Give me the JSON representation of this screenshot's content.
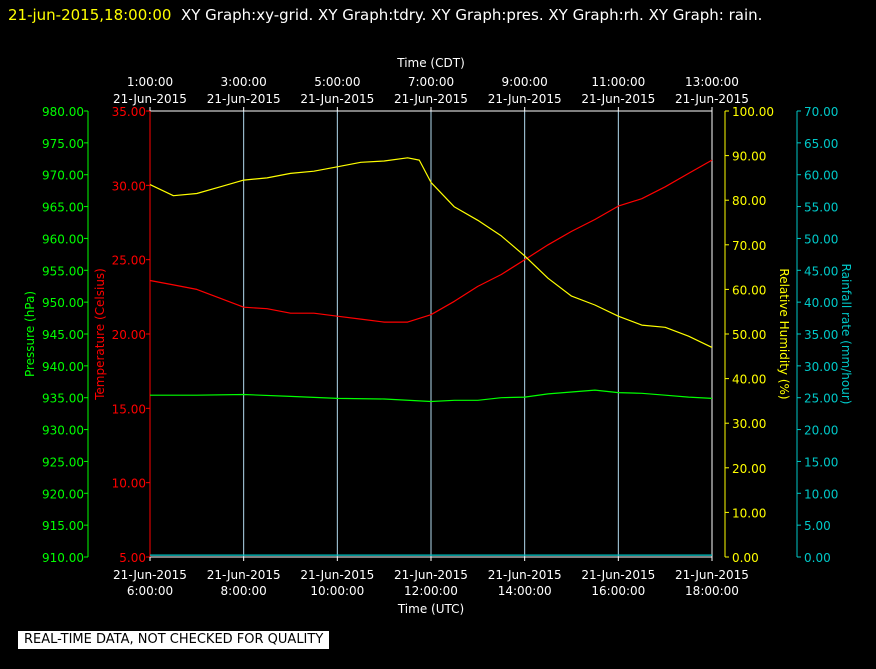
{
  "header": {
    "date_label": "21-jun-2015,18:00:00",
    "graphs_label": "XY Graph:xy-grid.  XY Graph:tdry.  XY Graph:pres.  XY Graph:rh.  XY Graph: rain."
  },
  "footer": {
    "qc_notice": "REAL-TIME DATA, NOT CHECKED FOR QUALITY"
  },
  "colors": {
    "pressure": "#00ff00",
    "temperature": "#ff0000",
    "humidity": "#ffff00",
    "rainfall": "#00c8c8",
    "grid": "#b4dcf0",
    "frame": "#ffffff"
  },
  "chart_data": {
    "type": "line",
    "x_top_title": "Time (CDT)",
    "x_bottom_title": "Time (UTC)",
    "x_range_utc_hours": [
      6,
      18
    ],
    "x_bottom_ticks": [
      {
        "h": 6,
        "date": "21-Jun-2015",
        "time": "6:00:00"
      },
      {
        "h": 8,
        "date": "21-Jun-2015",
        "time": "8:00:00"
      },
      {
        "h": 10,
        "date": "21-Jun-2015",
        "time": "10:00:00"
      },
      {
        "h": 12,
        "date": "21-Jun-2015",
        "time": "12:00:00"
      },
      {
        "h": 14,
        "date": "21-Jun-2015",
        "time": "14:00:00"
      },
      {
        "h": 16,
        "date": "21-Jun-2015",
        "time": "16:00:00"
      },
      {
        "h": 18,
        "date": "21-Jun-2015",
        "time": "18:00:00"
      }
    ],
    "x_top_ticks": [
      {
        "h": 6,
        "time": "1:00:00",
        "date": "21-Jun-2015"
      },
      {
        "h": 8,
        "time": "3:00:00",
        "date": "21-Jun-2015"
      },
      {
        "h": 10,
        "time": "5:00:00",
        "date": "21-Jun-2015"
      },
      {
        "h": 12,
        "time": "7:00:00",
        "date": "21-Jun-2015"
      },
      {
        "h": 14,
        "time": "9:00:00",
        "date": "21-Jun-2015"
      },
      {
        "h": 16,
        "time": "11:00:00",
        "date": "21-Jun-2015"
      },
      {
        "h": 18,
        "time": "13:00:00",
        "date": "21-Jun-2015"
      }
    ],
    "pressure_axis": {
      "label": "Pressure (hPa)",
      "range": [
        910,
        980
      ],
      "ticks": [
        "980.00",
        "975.00",
        "970.00",
        "965.00",
        "960.00",
        "955.00",
        "950.00",
        "945.00",
        "940.00",
        "935.00",
        "930.00",
        "925.00",
        "920.00",
        "915.00",
        "910.00"
      ]
    },
    "temperature_axis": {
      "label": "Temperature (Celsius)",
      "range": [
        5,
        35
      ],
      "ticks": [
        "35.00",
        "30.00",
        "25.00",
        "20.00",
        "15.00",
        "10.00",
        "5.00"
      ]
    },
    "humidity_axis": {
      "label": "Relative Humidity (%)",
      "range": [
        0,
        100
      ],
      "ticks": [
        "100.00",
        "90.00",
        "80.00",
        "70.00",
        "60.00",
        "50.00",
        "40.00",
        "30.00",
        "20.00",
        "10.00",
        "0.00"
      ]
    },
    "rainfall_axis": {
      "label": "Rainfall rate (mm/hour)",
      "range": [
        0,
        70
      ],
      "ticks": [
        "70.00",
        "65.00",
        "60.00",
        "55.00",
        "50.00",
        "45.00",
        "40.00",
        "35.00",
        "30.00",
        "25.00",
        "20.00",
        "15.00",
        "10.00",
        "5.00",
        "0.00"
      ]
    },
    "series": [
      {
        "key": "temperature",
        "axis": "temperature",
        "x": [
          6,
          6.5,
          7,
          7.5,
          8,
          8.5,
          9,
          9.5,
          10,
          10.5,
          11,
          11.5,
          12,
          12.5,
          13,
          13.5,
          14,
          14.5,
          15,
          15.5,
          16,
          16.5,
          17,
          17.5,
          18
        ],
        "values": [
          23.6,
          23.3,
          23.0,
          22.4,
          21.8,
          21.7,
          21.4,
          21.4,
          21.2,
          21.0,
          20.8,
          20.8,
          21.3,
          22.2,
          23.2,
          24.0,
          25.0,
          26.0,
          26.9,
          27.7,
          28.6,
          29.1,
          29.9,
          30.8,
          31.7
        ]
      },
      {
        "key": "humidity",
        "axis": "humidity",
        "x": [
          6,
          6.5,
          7,
          7.5,
          8,
          8.5,
          9,
          9.5,
          10,
          10.5,
          11,
          11.5,
          11.75,
          12,
          12.5,
          13,
          13.5,
          14,
          14.5,
          15,
          15.5,
          16,
          16.5,
          17,
          17.5,
          18
        ],
        "values": [
          83.5,
          81.0,
          81.5,
          83.0,
          84.5,
          85.0,
          86.0,
          86.5,
          87.5,
          88.5,
          88.8,
          89.5,
          89.0,
          84.0,
          78.5,
          75.5,
          72.0,
          67.5,
          62.5,
          58.5,
          56.5,
          54.0,
          52.0,
          51.5,
          49.5,
          47.0
        ]
      },
      {
        "key": "pressure",
        "axis": "pressure",
        "x": [
          6,
          7,
          8,
          9,
          10,
          11,
          12,
          12.5,
          13,
          13.5,
          14,
          14.5,
          15,
          15.5,
          16,
          16.5,
          17,
          17.5,
          18
        ],
        "values": [
          935.4,
          935.4,
          935.5,
          935.2,
          934.9,
          934.8,
          934.4,
          934.6,
          934.6,
          935.0,
          935.1,
          935.6,
          935.9,
          936.2,
          935.8,
          935.7,
          935.4,
          935.1,
          934.9
        ]
      },
      {
        "key": "rainfall",
        "axis": "rainfall",
        "x": [
          6,
          18
        ],
        "values": [
          0.3,
          0.3
        ]
      }
    ]
  }
}
